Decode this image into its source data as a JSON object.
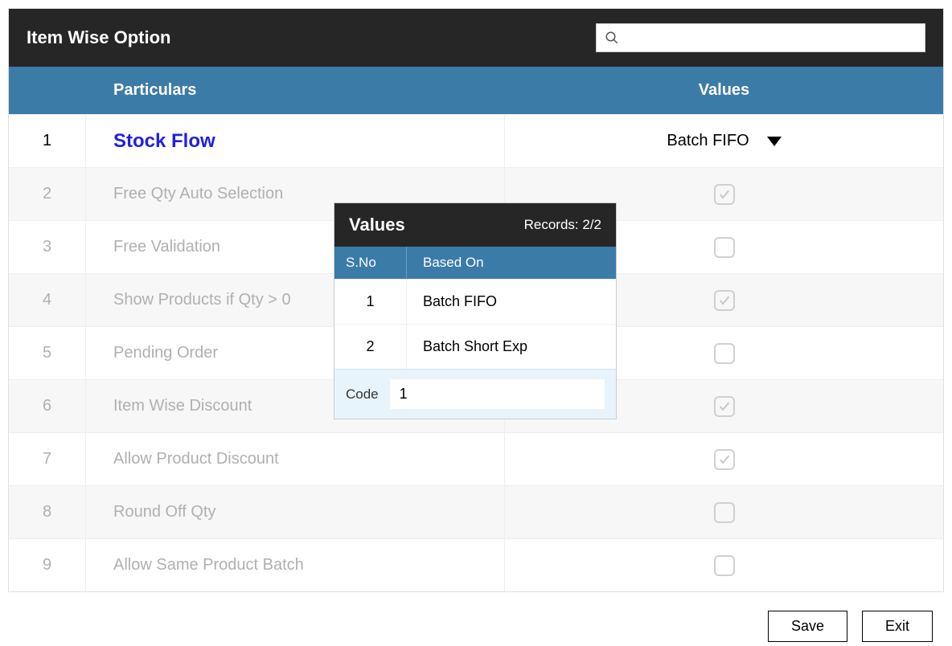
{
  "colors": {
    "titlebar_bg": "#262626",
    "header_bg": "#3b7ba8",
    "active_text": "#2020e0",
    "inactive_text": "#b0b0b0",
    "popup_footer_bg": "#e8f4fb"
  },
  "window": {
    "title": "Item Wise Option",
    "search_placeholder": ""
  },
  "table": {
    "columns": {
      "particulars": "Particulars",
      "values": "Values"
    },
    "rows": [
      {
        "num": "1",
        "label": "Stock Flow",
        "type": "dropdown",
        "value": "Batch FIFO",
        "active": true
      },
      {
        "num": "2",
        "label": "Free Qty Auto Selection",
        "type": "checkbox",
        "checked": true,
        "active": false
      },
      {
        "num": "3",
        "label": "Free Validation",
        "type": "checkbox",
        "checked": false,
        "active": false
      },
      {
        "num": "4",
        "label": "Show Products if Qty > 0",
        "type": "checkbox",
        "checked": true,
        "active": false
      },
      {
        "num": "5",
        "label": "Pending Order",
        "type": "checkbox",
        "checked": false,
        "active": false
      },
      {
        "num": "6",
        "label": "Item Wise Discount",
        "type": "checkbox",
        "checked": true,
        "active": false
      },
      {
        "num": "7",
        "label": "Allow Product Discount",
        "type": "checkbox",
        "checked": true,
        "active": false
      },
      {
        "num": "8",
        "label": "Round Off Qty",
        "type": "checkbox",
        "checked": false,
        "active": false
      },
      {
        "num": "9",
        "label": "Allow Same Product Batch",
        "type": "checkbox",
        "checked": false,
        "active": false
      }
    ]
  },
  "popup": {
    "title": "Values",
    "records": "Records: 2/2",
    "columns": {
      "sno": "S.No",
      "based_on": "Based On"
    },
    "rows": [
      {
        "sno": "1",
        "based_on": "Batch FIFO"
      },
      {
        "sno": "2",
        "based_on": "Batch Short Exp"
      }
    ],
    "code_label": "Code",
    "code_value": "1"
  },
  "buttons": {
    "save": "Save",
    "exit": "Exit"
  }
}
